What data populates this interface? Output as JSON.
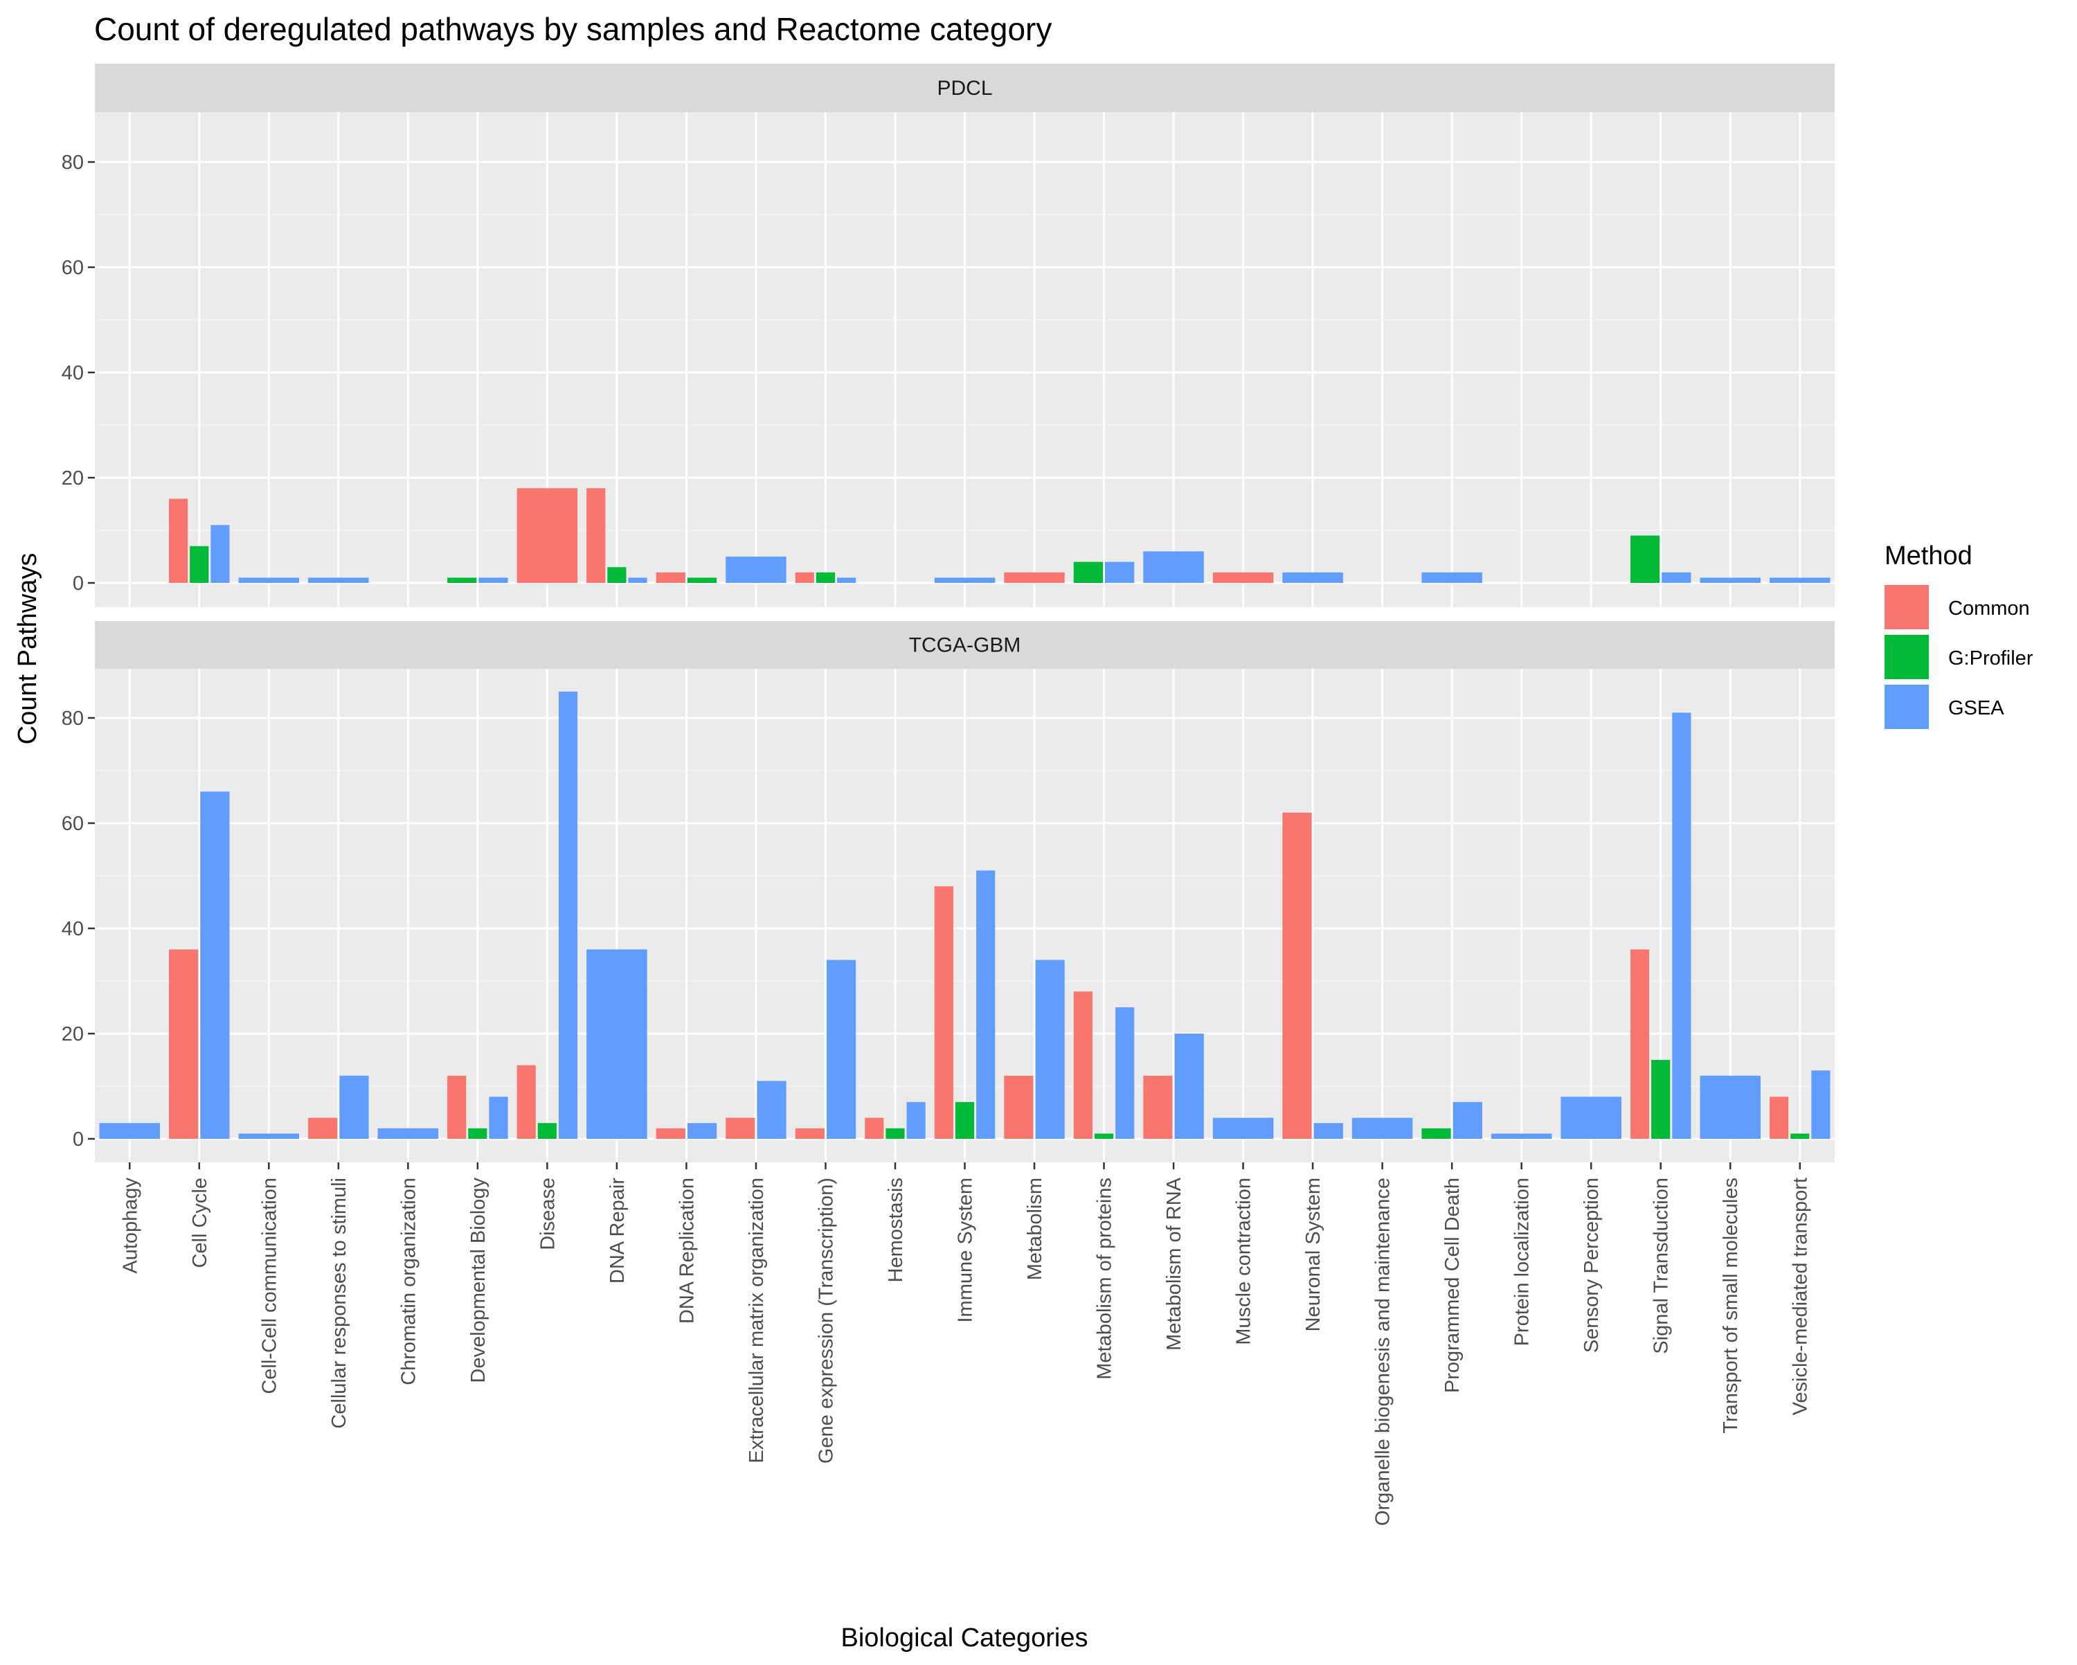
{
  "chart_data": {
    "type": "bar",
    "title": "Count of deregulated pathways by samples and Reactome category",
    "xlabel": "Biological Categories",
    "ylabel": "Count Pathways",
    "ylim": [
      -4,
      89
    ],
    "yticks": [
      0,
      20,
      40,
      60,
      80
    ],
    "grid": true,
    "legend": {
      "title": "Method",
      "placement": "right",
      "entries": [
        {
          "name": "Common",
          "color": "#F8766D"
        },
        {
          "name": "G:Profiler",
          "color": "#00BA38"
        },
        {
          "name": "GSEA",
          "color": "#619CFF"
        }
      ]
    },
    "categories": [
      "Autophagy",
      "Cell Cycle",
      "Cell-Cell communication",
      "Cellular responses to stimuli",
      "Chromatin organization",
      "Developmental Biology",
      "Disease",
      "DNA Repair",
      "DNA Replication",
      "Extracellular matrix organization",
      "Gene expression (Transcription)",
      "Hemostasis",
      "Immune System",
      "Metabolism",
      "Metabolism of proteins",
      "Metabolism of RNA",
      "Muscle contraction",
      "Neuronal System",
      "Organelle biogenesis and maintenance",
      "Programmed Cell Death",
      "Protein localization",
      "Sensory Perception",
      "Signal Transduction",
      "Transport of small molecules",
      "Vesicle-mediated transport"
    ],
    "facets": [
      {
        "name": "PDCL",
        "bars": [
          [
            1,
            "Common",
            16
          ],
          [
            1,
            "G:Profiler",
            7
          ],
          [
            1,
            "GSEA",
            11
          ],
          [
            2,
            "GSEA",
            1
          ],
          [
            3,
            "GSEA",
            1
          ],
          [
            5,
            "G:Profiler",
            1
          ],
          [
            5,
            "GSEA",
            1
          ],
          [
            6,
            "Common",
            18
          ],
          [
            7,
            "Common",
            18
          ],
          [
            7,
            "G:Profiler",
            3
          ],
          [
            7,
            "GSEA",
            1
          ],
          [
            8,
            "Common",
            2
          ],
          [
            8,
            "G:Profiler",
            1
          ],
          [
            9,
            "GSEA",
            5
          ],
          [
            10,
            "Common",
            2
          ],
          [
            10,
            "G:Profiler",
            2
          ],
          [
            10,
            "GSEA",
            1
          ],
          [
            12,
            "GSEA",
            1
          ],
          [
            13,
            "Common",
            2
          ],
          [
            14,
            "G:Profiler",
            4
          ],
          [
            14,
            "GSEA",
            4
          ],
          [
            15,
            "GSEA",
            6
          ],
          [
            16,
            "Common",
            2
          ],
          [
            17,
            "GSEA",
            2
          ],
          [
            19,
            "GSEA",
            2
          ],
          [
            22,
            "G:Profiler",
            9
          ],
          [
            22,
            "GSEA",
            2
          ],
          [
            23,
            "GSEA",
            1
          ],
          [
            24,
            "GSEA",
            1
          ]
        ]
      },
      {
        "name": "TCGA-GBM",
        "bars": [
          [
            0,
            "GSEA",
            3
          ],
          [
            1,
            "Common",
            36
          ],
          [
            1,
            "GSEA",
            66
          ],
          [
            2,
            "GSEA",
            1
          ],
          [
            3,
            "Common",
            4
          ],
          [
            3,
            "GSEA",
            12
          ],
          [
            4,
            "GSEA",
            2
          ],
          [
            5,
            "Common",
            12
          ],
          [
            5,
            "G:Profiler",
            2
          ],
          [
            5,
            "GSEA",
            8
          ],
          [
            6,
            "Common",
            14
          ],
          [
            6,
            "G:Profiler",
            3
          ],
          [
            6,
            "GSEA",
            85
          ],
          [
            7,
            "GSEA",
            36
          ],
          [
            8,
            "Common",
            2
          ],
          [
            8,
            "GSEA",
            3
          ],
          [
            9,
            "Common",
            4
          ],
          [
            9,
            "GSEA",
            11
          ],
          [
            10,
            "Common",
            2
          ],
          [
            10,
            "GSEA",
            34
          ],
          [
            11,
            "Common",
            4
          ],
          [
            11,
            "G:Profiler",
            2
          ],
          [
            11,
            "GSEA",
            7
          ],
          [
            12,
            "Common",
            48
          ],
          [
            12,
            "G:Profiler",
            7
          ],
          [
            12,
            "GSEA",
            51
          ],
          [
            13,
            "Common",
            12
          ],
          [
            13,
            "GSEA",
            34
          ],
          [
            14,
            "Common",
            28
          ],
          [
            14,
            "G:Profiler",
            1
          ],
          [
            14,
            "GSEA",
            25
          ],
          [
            15,
            "Common",
            12
          ],
          [
            15,
            "GSEA",
            20
          ],
          [
            16,
            "GSEA",
            4
          ],
          [
            17,
            "Common",
            62
          ],
          [
            17,
            "GSEA",
            3
          ],
          [
            18,
            "GSEA",
            4
          ],
          [
            19,
            "G:Profiler",
            2
          ],
          [
            19,
            "GSEA",
            7
          ],
          [
            20,
            "GSEA",
            1
          ],
          [
            21,
            "GSEA",
            8
          ],
          [
            22,
            "Common",
            36
          ],
          [
            22,
            "G:Profiler",
            15
          ],
          [
            22,
            "GSEA",
            81
          ],
          [
            23,
            "GSEA",
            12
          ],
          [
            24,
            "Common",
            8
          ],
          [
            24,
            "G:Profiler",
            1
          ],
          [
            24,
            "GSEA",
            13
          ]
        ]
      }
    ]
  }
}
